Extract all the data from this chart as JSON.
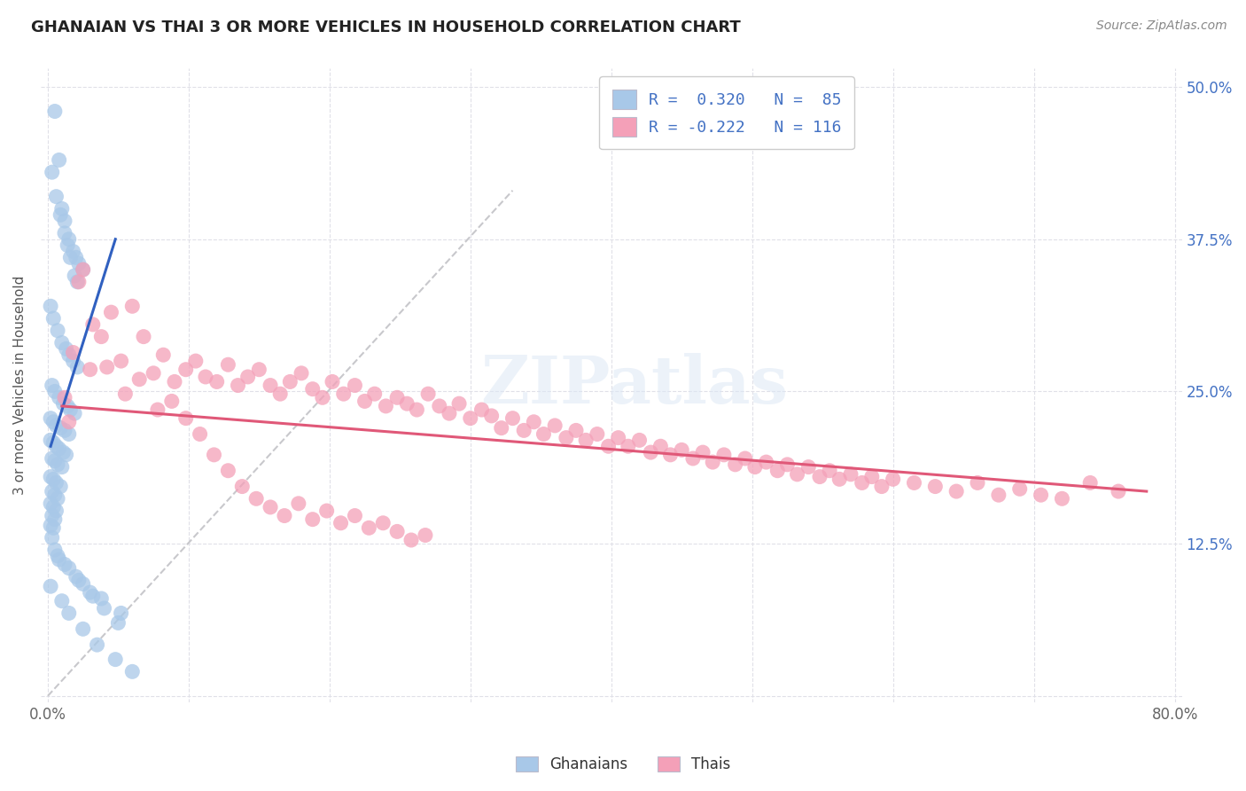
{
  "title": "GHANAIAN VS THAI 3 OR MORE VEHICLES IN HOUSEHOLD CORRELATION CHART",
  "source": "Source: ZipAtlas.com",
  "ylabel_label": "3 or more Vehicles in Household",
  "legend_labels": [
    "Ghanaians",
    "Thais"
  ],
  "ghanaian_color": "#a8c8e8",
  "thai_color": "#f4a0b8",
  "ghanaian_line_color": "#3060c0",
  "thai_line_color": "#e05878",
  "dashed_line_color": "#c8c8cc",
  "label_color": "#4472c4",
  "title_color": "#222222",
  "source_color": "#888888",
  "xmin": 0.0,
  "xmax": 0.8,
  "ymin": 0.0,
  "ymax": 0.5,
  "x_ticks": [
    0.0,
    0.1,
    0.2,
    0.3,
    0.4,
    0.5,
    0.6,
    0.7,
    0.8
  ],
  "x_labels": [
    "0.0%",
    "",
    "",
    "",
    "",
    "",
    "",
    "",
    "80.0%"
  ],
  "y_ticks": [
    0.0,
    0.125,
    0.25,
    0.375,
    0.5
  ],
  "y_labels": [
    "",
    "12.5%",
    "25.0%",
    "37.5%",
    "50.0%"
  ],
  "gh_line_x": [
    0.002,
    0.048
  ],
  "gh_line_y": [
    0.205,
    0.375
  ],
  "th_line_x": [
    0.01,
    0.78
  ],
  "th_line_y": [
    0.238,
    0.168
  ],
  "dash_line_x": [
    0.0,
    0.33
  ],
  "dash_line_y": [
    0.0,
    0.415
  ],
  "ghanaian_x": [
    0.005,
    0.008,
    0.01,
    0.012,
    0.015,
    0.018,
    0.02,
    0.022,
    0.025,
    0.003,
    0.006,
    0.009,
    0.012,
    0.014,
    0.016,
    0.019,
    0.021,
    0.002,
    0.004,
    0.007,
    0.01,
    0.013,
    0.015,
    0.018,
    0.021,
    0.003,
    0.005,
    0.008,
    0.011,
    0.014,
    0.016,
    0.019,
    0.002,
    0.004,
    0.006,
    0.009,
    0.012,
    0.015,
    0.002,
    0.004,
    0.006,
    0.008,
    0.011,
    0.013,
    0.003,
    0.005,
    0.007,
    0.01,
    0.002,
    0.004,
    0.006,
    0.009,
    0.003,
    0.005,
    0.007,
    0.002,
    0.004,
    0.006,
    0.003,
    0.005,
    0.002,
    0.004,
    0.003,
    0.002,
    0.01,
    0.015,
    0.025,
    0.035,
    0.048,
    0.06,
    0.008,
    0.02,
    0.03,
    0.04,
    0.05,
    0.005,
    0.015,
    0.025,
    0.038,
    0.052,
    0.007,
    0.012,
    0.022,
    0.032
  ],
  "ghanaian_y": [
    0.48,
    0.44,
    0.4,
    0.39,
    0.375,
    0.365,
    0.36,
    0.355,
    0.35,
    0.43,
    0.41,
    0.395,
    0.38,
    0.37,
    0.36,
    0.345,
    0.34,
    0.32,
    0.31,
    0.3,
    0.29,
    0.285,
    0.28,
    0.275,
    0.27,
    0.255,
    0.25,
    0.245,
    0.24,
    0.238,
    0.235,
    0.232,
    0.228,
    0.225,
    0.222,
    0.22,
    0.218,
    0.215,
    0.21,
    0.208,
    0.205,
    0.203,
    0.2,
    0.198,
    0.195,
    0.193,
    0.19,
    0.188,
    0.18,
    0.178,
    0.175,
    0.172,
    0.168,
    0.165,
    0.162,
    0.158,
    0.155,
    0.152,
    0.148,
    0.145,
    0.14,
    0.138,
    0.13,
    0.09,
    0.078,
    0.068,
    0.055,
    0.042,
    0.03,
    0.02,
    0.112,
    0.098,
    0.085,
    0.072,
    0.06,
    0.12,
    0.105,
    0.092,
    0.08,
    0.068,
    0.115,
    0.108,
    0.095,
    0.082
  ],
  "thai_x": [
    0.012,
    0.018,
    0.025,
    0.03,
    0.038,
    0.045,
    0.052,
    0.06,
    0.068,
    0.075,
    0.082,
    0.09,
    0.098,
    0.105,
    0.112,
    0.12,
    0.128,
    0.135,
    0.142,
    0.15,
    0.158,
    0.165,
    0.172,
    0.18,
    0.188,
    0.195,
    0.202,
    0.21,
    0.218,
    0.225,
    0.232,
    0.24,
    0.248,
    0.255,
    0.262,
    0.27,
    0.278,
    0.285,
    0.292,
    0.3,
    0.308,
    0.315,
    0.322,
    0.33,
    0.338,
    0.345,
    0.352,
    0.36,
    0.368,
    0.375,
    0.382,
    0.39,
    0.398,
    0.405,
    0.412,
    0.42,
    0.428,
    0.435,
    0.442,
    0.45,
    0.458,
    0.465,
    0.472,
    0.48,
    0.488,
    0.495,
    0.502,
    0.51,
    0.518,
    0.525,
    0.532,
    0.54,
    0.548,
    0.555,
    0.562,
    0.57,
    0.578,
    0.585,
    0.592,
    0.6,
    0.615,
    0.63,
    0.645,
    0.66,
    0.675,
    0.69,
    0.705,
    0.72,
    0.74,
    0.76,
    0.015,
    0.022,
    0.032,
    0.042,
    0.055,
    0.065,
    0.078,
    0.088,
    0.098,
    0.108,
    0.118,
    0.128,
    0.138,
    0.148,
    0.158,
    0.168,
    0.178,
    0.188,
    0.198,
    0.208,
    0.218,
    0.228,
    0.238,
    0.248,
    0.258,
    0.268
  ],
  "thai_y": [
    0.245,
    0.282,
    0.35,
    0.268,
    0.295,
    0.315,
    0.275,
    0.32,
    0.295,
    0.265,
    0.28,
    0.258,
    0.268,
    0.275,
    0.262,
    0.258,
    0.272,
    0.255,
    0.262,
    0.268,
    0.255,
    0.248,
    0.258,
    0.265,
    0.252,
    0.245,
    0.258,
    0.248,
    0.255,
    0.242,
    0.248,
    0.238,
    0.245,
    0.24,
    0.235,
    0.248,
    0.238,
    0.232,
    0.24,
    0.228,
    0.235,
    0.23,
    0.22,
    0.228,
    0.218,
    0.225,
    0.215,
    0.222,
    0.212,
    0.218,
    0.21,
    0.215,
    0.205,
    0.212,
    0.205,
    0.21,
    0.2,
    0.205,
    0.198,
    0.202,
    0.195,
    0.2,
    0.192,
    0.198,
    0.19,
    0.195,
    0.188,
    0.192,
    0.185,
    0.19,
    0.182,
    0.188,
    0.18,
    0.185,
    0.178,
    0.182,
    0.175,
    0.18,
    0.172,
    0.178,
    0.175,
    0.172,
    0.168,
    0.175,
    0.165,
    0.17,
    0.165,
    0.162,
    0.175,
    0.168,
    0.225,
    0.34,
    0.305,
    0.27,
    0.248,
    0.26,
    0.235,
    0.242,
    0.228,
    0.215,
    0.198,
    0.185,
    0.172,
    0.162,
    0.155,
    0.148,
    0.158,
    0.145,
    0.152,
    0.142,
    0.148,
    0.138,
    0.142,
    0.135,
    0.128,
    0.132
  ]
}
